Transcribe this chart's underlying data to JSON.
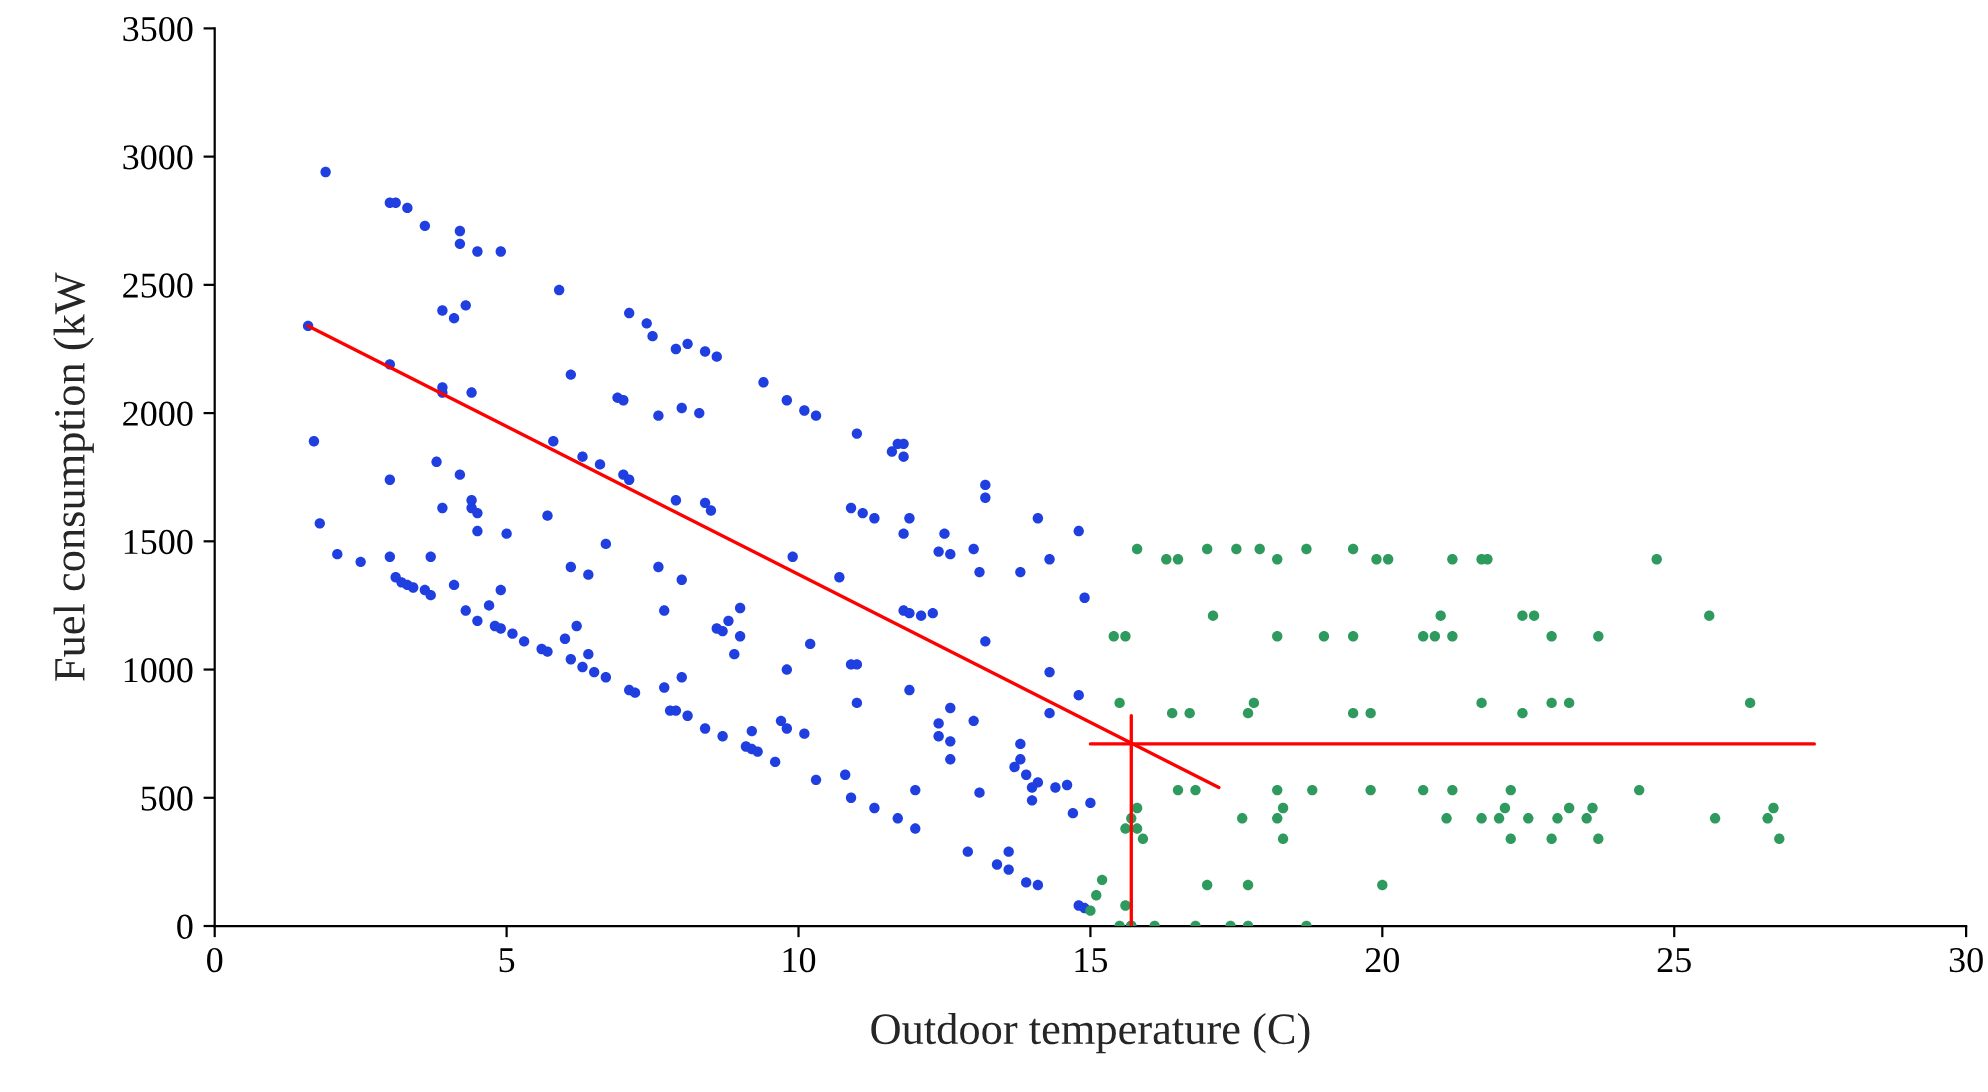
{
  "chart_data": {
    "type": "scatter",
    "xlabel": "Outdoor temperature (C)",
    "ylabel": "Fuel consumption (kW",
    "xlim": [
      0,
      30
    ],
    "xticks": [
      0,
      5,
      10,
      15,
      20,
      25,
      30
    ],
    "ylim": [
      0,
      3500
    ],
    "yticks": [
      0,
      500,
      1000,
      1500,
      2000,
      2500,
      3000,
      3500
    ],
    "grid": false,
    "legend": false,
    "series": [
      {
        "marker": "circle",
        "color": "#1f3fe0",
        "x": [
          1.9,
          3.0,
          3.1,
          3.3,
          3.6,
          4.2,
          4.2,
          4.5,
          4.9,
          5.9,
          7.1,
          7.4,
          7.5,
          7.9,
          8.1,
          8.4,
          8.6,
          9.4,
          9.8,
          10.1,
          10.3,
          11.0,
          11.6,
          11.7,
          11.8,
          11.8,
          13.2,
          13.2,
          14.1,
          14.8,
          14.3,
          13.8,
          14.9,
          3.9,
          4.1,
          4.3,
          6.1,
          6.9,
          7.0,
          7.6,
          8.0,
          8.3,
          7.9,
          8.4,
          8.5,
          9.9,
          10.7,
          10.9,
          11.1,
          11.3,
          11.9,
          11.8,
          12.5,
          12.4,
          12.6,
          13.0,
          13.1,
          11.8,
          11.9,
          12.1,
          12.3,
          13.2,
          14.3,
          14.8,
          14.3,
          1.6,
          3.0,
          3.9,
          3.9,
          4.4,
          5.8,
          6.3,
          6.6,
          7.0,
          7.1,
          1.7,
          3.0,
          3.8,
          4.2,
          4.4,
          4.4,
          4.5,
          4.5,
          3.9,
          5.0,
          5.7,
          6.7,
          6.1,
          6.4,
          7.6,
          7.7,
          8.0,
          7.7,
          8.0,
          7.8,
          7.9,
          8.1,
          8.4,
          8.7,
          9.1,
          9.2,
          9.3,
          9.6,
          9.7,
          9.8,
          10.1,
          9.2,
          10.3,
          10.8,
          10.9,
          11.3,
          11.7,
          12.0,
          12.0,
          13.1,
          12.9,
          13.4,
          13.6,
          13.6,
          13.9,
          14.1,
          14.8,
          14.9,
          9.0,
          8.6,
          8.7,
          8.8,
          9.0,
          8.9,
          10.2,
          9.8,
          10.9,
          11.0,
          11.0,
          11.9,
          12.6,
          12.4,
          12.4,
          12.6,
          12.6,
          13.0,
          13.8,
          13.8,
          13.7,
          13.9,
          14.1,
          14.0,
          14.0,
          14.4,
          14.6,
          14.7,
          15.0,
          1.8,
          2.1,
          2.5,
          3.0,
          3.7,
          3.1,
          3.2,
          3.3,
          3.4,
          3.6,
          3.7,
          4.1,
          4.3,
          4.5,
          4.8,
          4.9,
          5.1,
          5.3,
          4.7,
          4.9,
          5.6,
          5.7,
          6.0,
          6.2,
          6.1,
          6.3,
          6.5,
          6.7,
          6.4,
          7.1,
          7.2,
          15.7
        ],
        "values": [
          2940,
          2820,
          2820,
          2800,
          2730,
          2710,
          2660,
          2630,
          2630,
          2480,
          2390,
          2350,
          2300,
          2250,
          2270,
          2240,
          2220,
          2120,
          2050,
          2010,
          1990,
          1920,
          1850,
          1880,
          1880,
          1830,
          1720,
          1670,
          1590,
          1540,
          1430,
          1380,
          1280,
          2400,
          2370,
          2420,
          2150,
          2060,
          2050,
          1990,
          2020,
          2000,
          1660,
          1650,
          1620,
          1440,
          1360,
          1630,
          1610,
          1590,
          1590,
          1530,
          1530,
          1460,
          1450,
          1470,
          1380,
          1230,
          1220,
          1210,
          1220,
          1110,
          990,
          900,
          830,
          2340,
          2190,
          2100,
          2080,
          2080,
          1890,
          1830,
          1800,
          1760,
          1740,
          1890,
          1740,
          1810,
          1760,
          1660,
          1630,
          1610,
          1540,
          1630,
          1530,
          1600,
          1490,
          1400,
          1370,
          1400,
          1230,
          1350,
          930,
          970,
          840,
          840,
          820,
          770,
          740,
          700,
          690,
          680,
          640,
          800,
          770,
          750,
          760,
          570,
          590,
          500,
          460,
          420,
          380,
          530,
          520,
          290,
          240,
          220,
          290,
          170,
          160,
          80,
          70,
          1240,
          1160,
          1150,
          1190,
          1130,
          1060,
          1100,
          1000,
          1020,
          1020,
          870,
          920,
          850,
          790,
          740,
          720,
          650,
          800,
          710,
          650,
          620,
          590,
          560,
          540,
          490,
          540,
          550,
          440,
          480,
          1570,
          1450,
          1420,
          1440,
          1440,
          1360,
          1340,
          1330,
          1320,
          1310,
          1290,
          1330,
          1230,
          1190,
          1170,
          1160,
          1140,
          1110,
          1250,
          1310,
          1080,
          1070,
          1120,
          1170,
          1040,
          1010,
          990,
          970,
          1060,
          920,
          910,
          0
        ]
      },
      {
        "marker": "circle",
        "color": "#2e9a5e",
        "x": [
          15.8,
          16.3,
          16.5,
          17.0,
          17.5,
          17.9,
          18.2,
          18.7,
          19.5,
          19.9,
          20.1,
          21.2,
          21.7,
          21.8,
          24.7,
          17.1,
          21.0,
          22.4,
          22.6,
          25.6,
          15.4,
          15.6,
          18.2,
          19.0,
          19.5,
          20.7,
          20.9,
          21.2,
          22.9,
          23.7,
          15.5,
          16.4,
          16.7,
          17.8,
          17.7,
          19.5,
          19.8,
          21.7,
          22.4,
          22.9,
          23.2,
          26.3,
          16.5,
          16.8,
          18.2,
          18.8,
          19.8,
          20.7,
          21.2,
          22.2,
          24.4,
          15.8,
          15.7,
          15.6,
          15.8,
          15.9,
          17.6,
          18.3,
          18.2,
          18.3,
          21.1,
          21.7,
          22.0,
          22.1,
          22.5,
          22.2,
          23.0,
          23.2,
          23.5,
          23.6,
          25.7,
          26.6,
          26.7,
          22.9,
          23.7,
          26.8,
          15.2,
          15.1,
          15.0,
          15.6,
          17.0,
          17.7,
          20.0,
          15.5,
          15.7,
          16.1,
          16.8,
          17.4,
          17.7,
          18.7
        ],
        "values": [
          1470,
          1430,
          1430,
          1470,
          1470,
          1470,
          1430,
          1470,
          1470,
          1430,
          1430,
          1430,
          1430,
          1430,
          1430,
          1210,
          1210,
          1210,
          1210,
          1210,
          1130,
          1130,
          1130,
          1130,
          1130,
          1130,
          1130,
          1130,
          1130,
          1130,
          870,
          830,
          830,
          870,
          830,
          830,
          830,
          870,
          830,
          870,
          870,
          870,
          530,
          530,
          530,
          530,
          530,
          530,
          530,
          530,
          530,
          460,
          420,
          380,
          380,
          340,
          420,
          460,
          420,
          340,
          420,
          420,
          420,
          460,
          420,
          340,
          420,
          460,
          420,
          460,
          420,
          420,
          460,
          340,
          340,
          340,
          180,
          120,
          60,
          80,
          160,
          160,
          160,
          0,
          0,
          0,
          0,
          0,
          0,
          0
        ]
      },
      {
        "type": "line",
        "marker": "none",
        "color": "#ff0000",
        "x": [
          1.6,
          17.2
        ],
        "values": [
          2340,
          540
        ]
      },
      {
        "type": "line",
        "marker": "none",
        "color": "#ff0000",
        "x": [
          15.0,
          27.4
        ],
        "values": [
          710,
          710
        ]
      },
      {
        "type": "line",
        "marker": "none",
        "color": "#ff0000",
        "x": [
          15.7,
          15.7
        ],
        "values": [
          820,
          0
        ]
      }
    ]
  }
}
